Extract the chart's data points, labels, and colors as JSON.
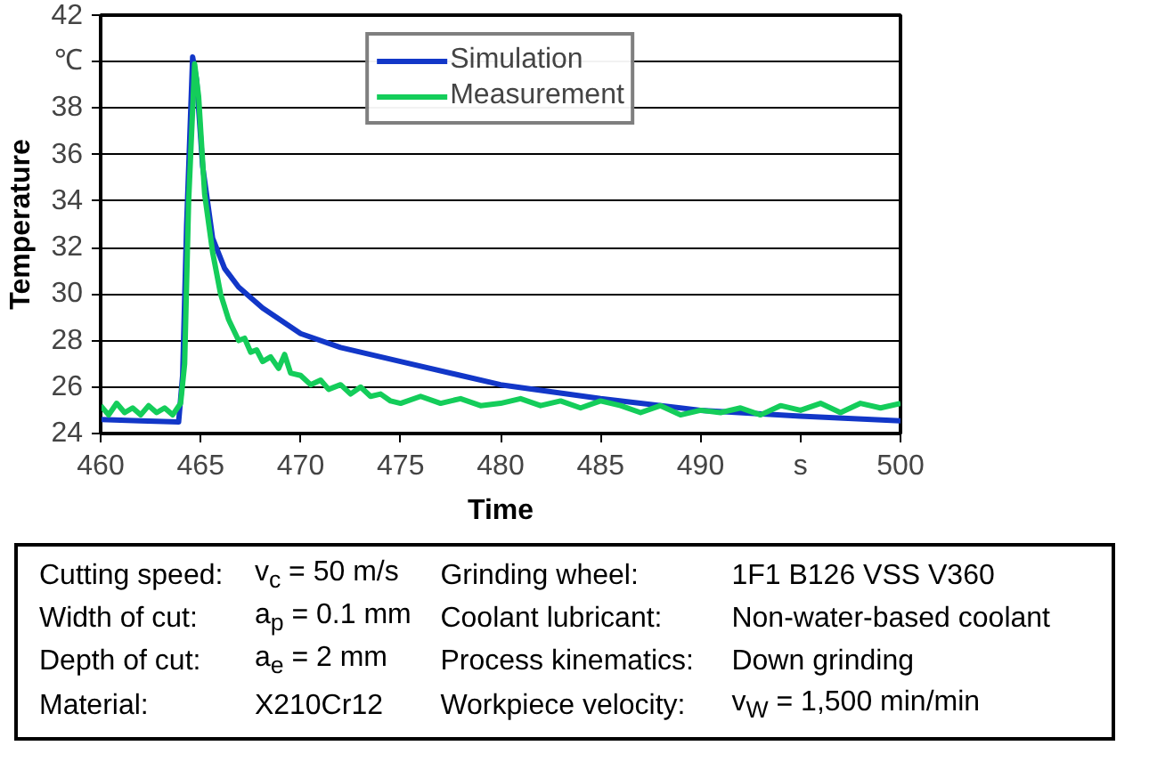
{
  "chart_data": {
    "type": "line",
    "xlabel": "Time",
    "ylabel": "Temperature",
    "xlim": [
      460,
      500
    ],
    "xticks": [
      460,
      465,
      470,
      475,
      480,
      485,
      490,
      {
        "value": 495,
        "label": "s"
      },
      500
    ],
    "ylim": [
      24,
      42
    ],
    "yticks": [
      24,
      26,
      28,
      30,
      32,
      34,
      36,
      38,
      {
        "value": 40,
        "label": "℃"
      },
      42
    ],
    "grid": "y",
    "legend": "top",
    "line_style": "solid",
    "series": [
      {
        "name": "Simulation",
        "color": "#1237c8",
        "x": [
          460,
          462,
          463.9,
          464.1,
          464.3,
          464.6,
          464.8,
          465.1,
          465.6,
          466.2,
          466.9,
          468.1,
          470,
          472,
          475,
          478,
          480,
          485,
          490,
          495,
          500
        ],
        "values": [
          24.6,
          24.55,
          24.5,
          26.5,
          33,
          40.2,
          39.2,
          35.5,
          32.4,
          31.1,
          30.3,
          29.4,
          28.3,
          27.7,
          27.1,
          26.5,
          26.1,
          25.5,
          25.0,
          24.75,
          24.55
        ]
      },
      {
        "name": "Measurement",
        "color": "#14cd5a",
        "x": [
          460,
          460.4,
          460.8,
          461.2,
          461.6,
          462,
          462.4,
          462.8,
          463.2,
          463.6,
          464,
          464.2,
          464.4,
          464.7,
          464.9,
          465.2,
          465.6,
          466,
          466.4,
          466.9,
          467.2,
          467.5,
          467.8,
          468.1,
          468.5,
          468.9,
          469.2,
          469.5,
          470,
          470.5,
          471,
          471.4,
          472,
          472.5,
          473,
          473.5,
          474,
          474.5,
          475,
          476,
          477,
          478,
          479,
          480,
          481,
          482,
          483,
          484,
          485,
          486,
          487,
          488,
          489,
          490,
          491,
          492,
          493,
          494,
          495,
          496,
          497,
          498,
          499,
          500
        ],
        "values": [
          25.2,
          24.8,
          25.3,
          24.9,
          25.1,
          24.8,
          25.2,
          24.9,
          25.1,
          24.8,
          25.3,
          27,
          34,
          39.9,
          38.5,
          34.3,
          31.8,
          30.0,
          28.9,
          28.0,
          28.1,
          27.5,
          27.6,
          27.1,
          27.3,
          26.8,
          27.4,
          26.6,
          26.5,
          26.1,
          26.3,
          25.9,
          26.1,
          25.7,
          26.0,
          25.6,
          25.7,
          25.4,
          25.3,
          25.6,
          25.3,
          25.5,
          25.2,
          25.3,
          25.5,
          25.2,
          25.4,
          25.1,
          25.4,
          25.2,
          24.9,
          25.2,
          24.8,
          25.0,
          24.9,
          25.1,
          24.8,
          25.2,
          25.0,
          25.3,
          24.9,
          25.3,
          25.1,
          25.3
        ]
      }
    ],
    "annotations": [
      "Cutting speed:",
      "v$_{c}$ = 50 m/s",
      "Grinding wheel:",
      "1F1 B126 VSS V360",
      "Width of cut:",
      "a$_{p}$ = 0.1 mm",
      "Coolant lubricant:",
      "Non-water-based coolant",
      "Depth of cut:",
      "a$_{e}$ = 2 mm",
      "Process kinematics:",
      "Down grinding",
      "Material:",
      "X210Cr12",
      "Workpiece velocity:",
      "v$_{W}$ = 1,500 min/min"
    ]
  }
}
